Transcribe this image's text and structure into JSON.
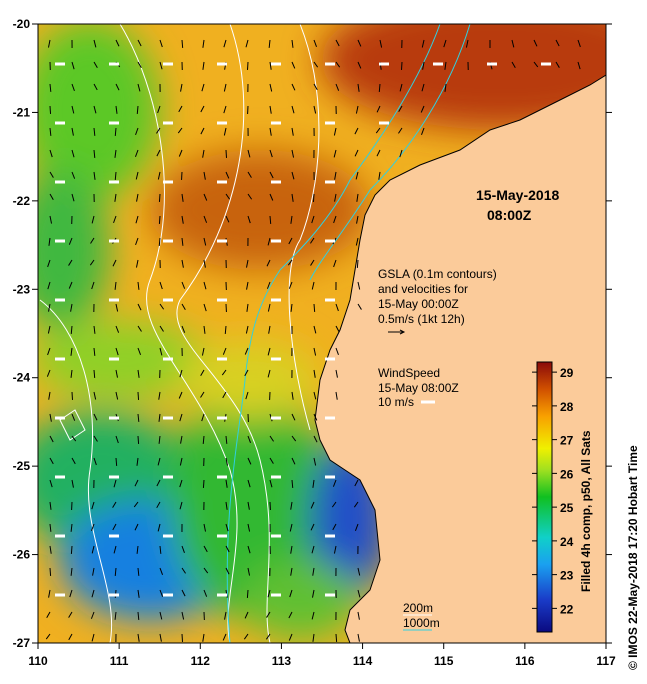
{
  "title": {
    "date": "15-May-2018",
    "time": "08:00Z"
  },
  "gsla_legend": [
    "GSLA (0.1m contours)",
    "and velocities for",
    "15-May 00:00Z",
    "0.5m/s (1kt 12h)"
  ],
  "wind_legend": [
    "WindSpeed",
    "15-May 08:00Z",
    "10 m/s"
  ],
  "depth_legend": [
    "200m",
    "1000m"
  ],
  "x_ticks": [
    "110",
    "111",
    "112",
    "113",
    "114",
    "115",
    "116",
    "117"
  ],
  "y_ticks": [
    "-20",
    "-21",
    "-22",
    "-23",
    "-24",
    "-25",
    "-26",
    "-27"
  ],
  "colorbar": {
    "ticks": [
      "22",
      "23",
      "24",
      "25",
      "26",
      "27",
      "28",
      "29"
    ],
    "range": [
      21.3,
      29.3
    ],
    "label": "Filled 4h comp, p50, All Sats"
  },
  "credit": "© IMOS 22-May-2018 17:20 Hobart Time",
  "colors": {
    "land": "#fbcb9a",
    "warm": "#b23a0c",
    "mid": "#e8d020",
    "cool": "#2ca020",
    "cold": "#2050c8"
  }
}
